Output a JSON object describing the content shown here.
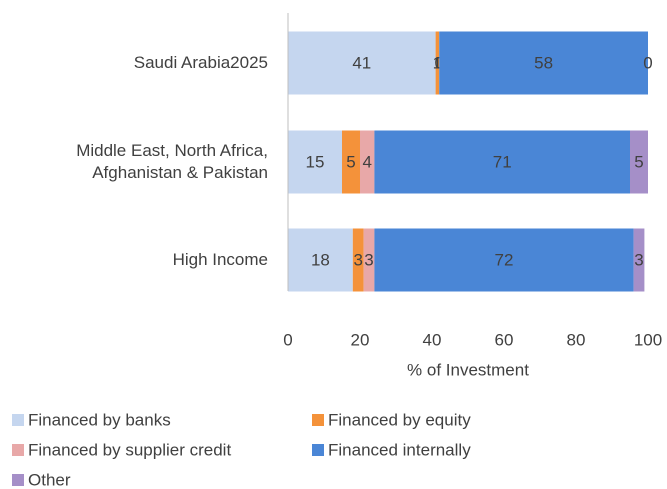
{
  "chart_data": {
    "type": "stacked-bar-horizontal",
    "categories": [
      "Saudi Arabia2025",
      "Middle East, North Africa, Afghanistan & Pakistan",
      "High Income"
    ],
    "series": [
      {
        "name": "Financed by banks",
        "color": "#c5d6ef",
        "values": [
          41,
          15,
          18
        ]
      },
      {
        "name": "Financed by equity",
        "color": "#f4923a",
        "values": [
          1,
          5,
          3
        ]
      },
      {
        "name": "Financed by supplier credit",
        "color": "#e8a8a8",
        "values": [
          0,
          4,
          3
        ]
      },
      {
        "name": "Financed internally",
        "color": "#4a86d6",
        "values": [
          58,
          71,
          72
        ]
      },
      {
        "name": "Other",
        "color": "#a58fc8",
        "values": [
          0,
          5,
          3
        ]
      }
    ],
    "xlim": [
      0,
      100
    ],
    "xticks": [
      0,
      20,
      40,
      60,
      80,
      100
    ],
    "xlabel": "% of Investment"
  }
}
